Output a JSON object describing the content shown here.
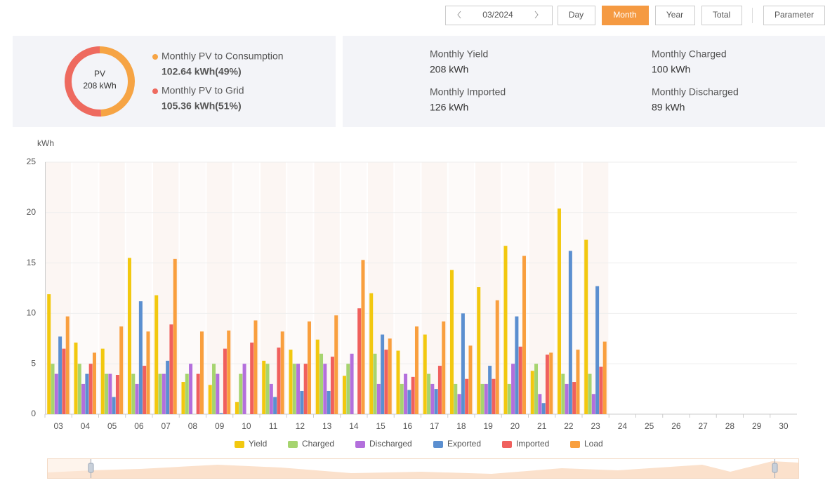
{
  "toolbar": {
    "date": "03/2024",
    "buttons": [
      "Day",
      "Month",
      "Year",
      "Total"
    ],
    "active_index": 1,
    "parameter": "Parameter"
  },
  "summary": [
    {
      "label": "Monthly Yield",
      "value": "208 kWh"
    },
    {
      "label": "Monthly Charged",
      "value": "100 kWh"
    },
    {
      "label": "Monthly Imported",
      "value": "126 kWh"
    },
    {
      "label": "Monthly Discharged",
      "value": "89 kWh"
    }
  ],
  "chart_data": [
    {
      "type": "pie",
      "center_title": "PV",
      "center_value": "208 kWh",
      "categories": [
        "Monthly PV to Consumption",
        "Monthly PV to Grid"
      ],
      "values": [
        102.64,
        105.36
      ],
      "value_labels": [
        "102.64 kWh(49%)",
        "105.36 kWh(51%)"
      ],
      "colors": [
        "#f6a444",
        "#ee6a5f"
      ]
    },
    {
      "type": "bar",
      "y_label": "kWh",
      "categories": [
        "03",
        "04",
        "05",
        "06",
        "07",
        "08",
        "09",
        "10",
        "11",
        "12",
        "13",
        "14",
        "15",
        "16",
        "17",
        "18",
        "19",
        "20",
        "21",
        "22",
        "23",
        "24",
        "25",
        "26",
        "27",
        "28",
        "29",
        "30"
      ],
      "series": [
        {
          "name": "Yield",
          "color": "#f2c80f",
          "values": [
            11.9,
            7.1,
            6.5,
            15.5,
            11.8,
            3.2,
            2.9,
            1.2,
            5.3,
            6.4,
            7.4,
            3.8,
            12.0,
            6.3,
            7.9,
            14.3,
            12.6,
            16.7,
            4.3,
            20.4,
            17.3,
            null,
            null,
            null,
            null,
            null,
            null,
            null
          ]
        },
        {
          "name": "Charged",
          "color": "#a6d46f",
          "values": [
            5,
            5,
            4,
            4,
            4,
            4,
            5,
            4,
            5,
            5,
            6,
            5,
            6,
            3,
            4,
            3,
            3,
            3,
            5,
            4,
            4,
            null,
            null,
            null,
            null,
            null,
            null,
            null
          ]
        },
        {
          "name": "Discharged",
          "color": "#b36fdc",
          "values": [
            4,
            3,
            4,
            3,
            4,
            5,
            4,
            5,
            3,
            5,
            5,
            6,
            3,
            4,
            3,
            2,
            3,
            5,
            2,
            3,
            2,
            null,
            null,
            null,
            null,
            null,
            null,
            null
          ]
        },
        {
          "name": "Exported",
          "color": "#5b8fd0",
          "values": [
            7.7,
            4,
            1.7,
            11.2,
            5.3,
            0,
            0.1,
            0,
            1.7,
            2.3,
            2.3,
            0,
            7.9,
            2.4,
            2.5,
            10,
            4.8,
            9.7,
            1.1,
            16.2,
            12.7,
            null,
            null,
            null,
            null,
            null,
            null,
            null
          ]
        },
        {
          "name": "Imported",
          "color": "#f0605d",
          "values": [
            6.5,
            5,
            3.9,
            4.8,
            8.9,
            4,
            6.5,
            7.1,
            6.6,
            5,
            5.7,
            10.5,
            6.4,
            3.7,
            4.8,
            3.5,
            3.5,
            6.7,
            5.9,
            3.2,
            4.7,
            null,
            null,
            null,
            null,
            null,
            null,
            null
          ]
        },
        {
          "name": "Load",
          "color": "#f99f3e",
          "values": [
            9.7,
            6.1,
            8.7,
            8.2,
            15.4,
            8.2,
            8.3,
            9.3,
            8.2,
            9.2,
            9.8,
            15.3,
            7.5,
            8.7,
            9.2,
            6.8,
            11.3,
            15.7,
            6.1,
            6.4,
            7.2,
            null,
            null,
            null,
            null,
            null,
            null,
            null
          ]
        }
      ],
      "ylim": [
        0,
        25
      ],
      "yticks": [
        0,
        5,
        10,
        15,
        20,
        25
      ],
      "grid": true
    }
  ]
}
